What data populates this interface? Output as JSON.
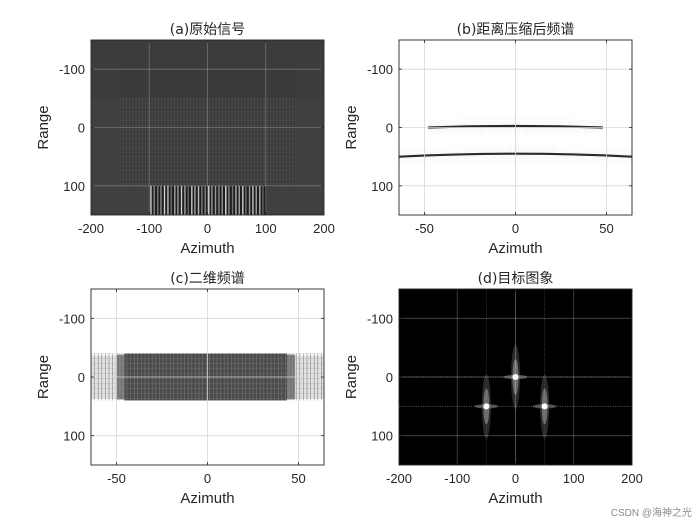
{
  "chart_data": [
    {
      "type": "heatmap",
      "title": "(a)原始信号",
      "xlabel": "Azimuth",
      "ylabel": "Range",
      "xlim": [
        -200,
        200
      ],
      "ylim": [
        150,
        -150
      ],
      "y_reversed": true,
      "xticks": [
        -200,
        -100,
        0,
        100,
        200
      ],
      "yticks": [
        -100,
        0,
        100
      ],
      "grid": true,
      "colormap": "gray",
      "background": "#3c3c3c",
      "regions": [
        {
          "kind": "block",
          "x": [
            -200,
            200
          ],
          "y": [
            -50,
            150
          ],
          "shade": "#404040"
        },
        {
          "kind": "block",
          "x": [
            -150,
            150
          ],
          "y": [
            -100,
            100
          ],
          "shade": "#3a3a3a"
        },
        {
          "kind": "texture",
          "x": [
            -150,
            150
          ],
          "y": [
            -50,
            100
          ],
          "shade": "#6a6a6a"
        },
        {
          "kind": "bright-stripes",
          "x": [
            -100,
            100
          ],
          "y": [
            100,
            150
          ],
          "shade": "#dcdcdc"
        }
      ]
    },
    {
      "type": "heatmap",
      "title": "(b)距离压缩后频谱",
      "xlabel": "Azimuth",
      "ylabel": "Range",
      "xlim": [
        -64,
        64
      ],
      "ylim": [
        150,
        -150
      ],
      "y_reversed": true,
      "xticks": [
        -50,
        0,
        50
      ],
      "yticks": [
        -100,
        0,
        100
      ],
      "grid": true,
      "colormap": "gray",
      "background": "#ffffff",
      "curves": [
        {
          "range": 0,
          "x": [
            -48,
            48
          ],
          "bend": -3,
          "shade": "#2a2a2a"
        },
        {
          "range": 50,
          "x": [
            -64,
            64
          ],
          "bend": -6,
          "shade": "#2a2a2a"
        }
      ]
    },
    {
      "type": "heatmap",
      "title": "(c)二维频谱",
      "xlabel": "Azimuth",
      "ylabel": "Range",
      "xlim": [
        -64,
        64
      ],
      "ylim": [
        150,
        -150
      ],
      "y_reversed": true,
      "xticks": [
        -50,
        0,
        50
      ],
      "yticks": [
        -100,
        0,
        100
      ],
      "grid": true,
      "colormap": "gray",
      "background": "#ffffff",
      "band": {
        "range": [
          -40,
          40
        ],
        "core_x": [
          -50,
          48
        ],
        "edge_x": [
          -64,
          64
        ],
        "shade": "#4c4c4c"
      }
    },
    {
      "type": "heatmap",
      "title": "(d)目标图象",
      "xlabel": "Azimuth",
      "ylabel": "Range",
      "xlim": [
        -200,
        200
      ],
      "ylim": [
        150,
        -150
      ],
      "y_reversed": true,
      "xticks": [
        -200,
        -100,
        0,
        100,
        200
      ],
      "yticks": [
        -100,
        0,
        100
      ],
      "grid": true,
      "colormap": "gray",
      "background": "#000000",
      "targets": [
        {
          "azimuth": 0,
          "range": 0
        },
        {
          "azimuth": -50,
          "range": 50
        },
        {
          "azimuth": 50,
          "range": 50
        }
      ]
    }
  ],
  "watermark": "CSDN @海神之光"
}
